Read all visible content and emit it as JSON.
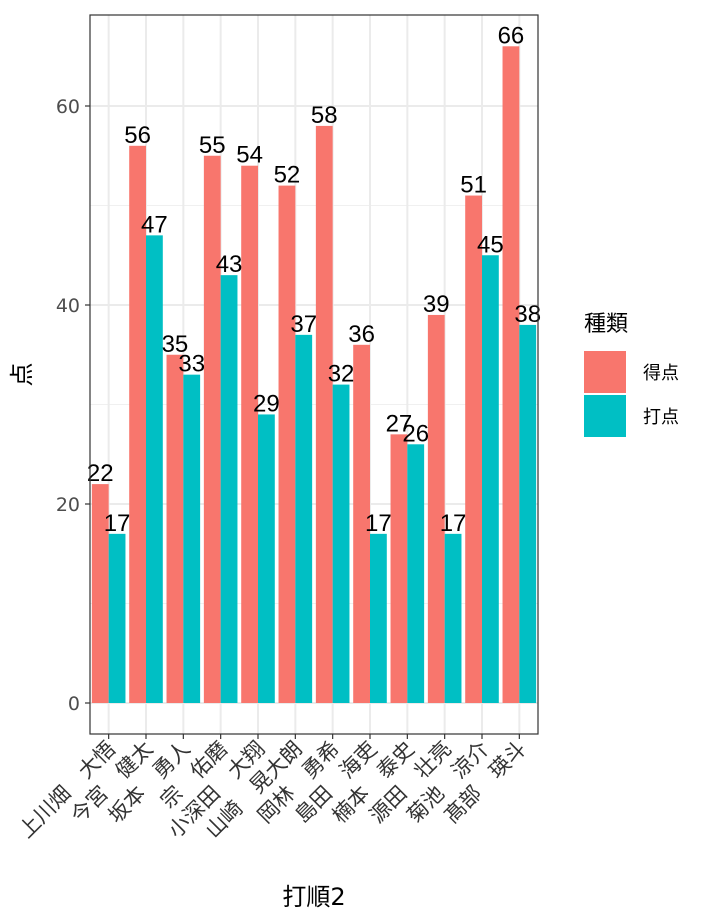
{
  "chart_data": {
    "type": "bar",
    "xlabel": "打順2",
    "ylabel": "点",
    "ylim": [
      0,
      69
    ],
    "yticks": [
      0,
      20,
      40,
      60
    ],
    "categories": [
      "上川畑　大悟",
      "今宮　健太",
      "坂本　勇人",
      "宗　佑磨",
      "小深田　大翔",
      "山崎　晃大朗",
      "岡林　勇希",
      "島田　海吏",
      "楠本　泰史",
      "源田　壮亮",
      "菊池　涼介",
      "髙部　瑛斗"
    ],
    "series": [
      {
        "name": "得点",
        "color": "#F8766D",
        "values": [
          22,
          56,
          35,
          55,
          54,
          52,
          58,
          36,
          27,
          39,
          51,
          66
        ]
      },
      {
        "name": "打点",
        "color": "#00BFC4",
        "values": [
          17,
          47,
          33,
          43,
          29,
          37,
          32,
          17,
          26,
          17,
          45,
          38
        ]
      }
    ],
    "legend": {
      "title": "種類",
      "position": "right"
    },
    "grid": true
  }
}
